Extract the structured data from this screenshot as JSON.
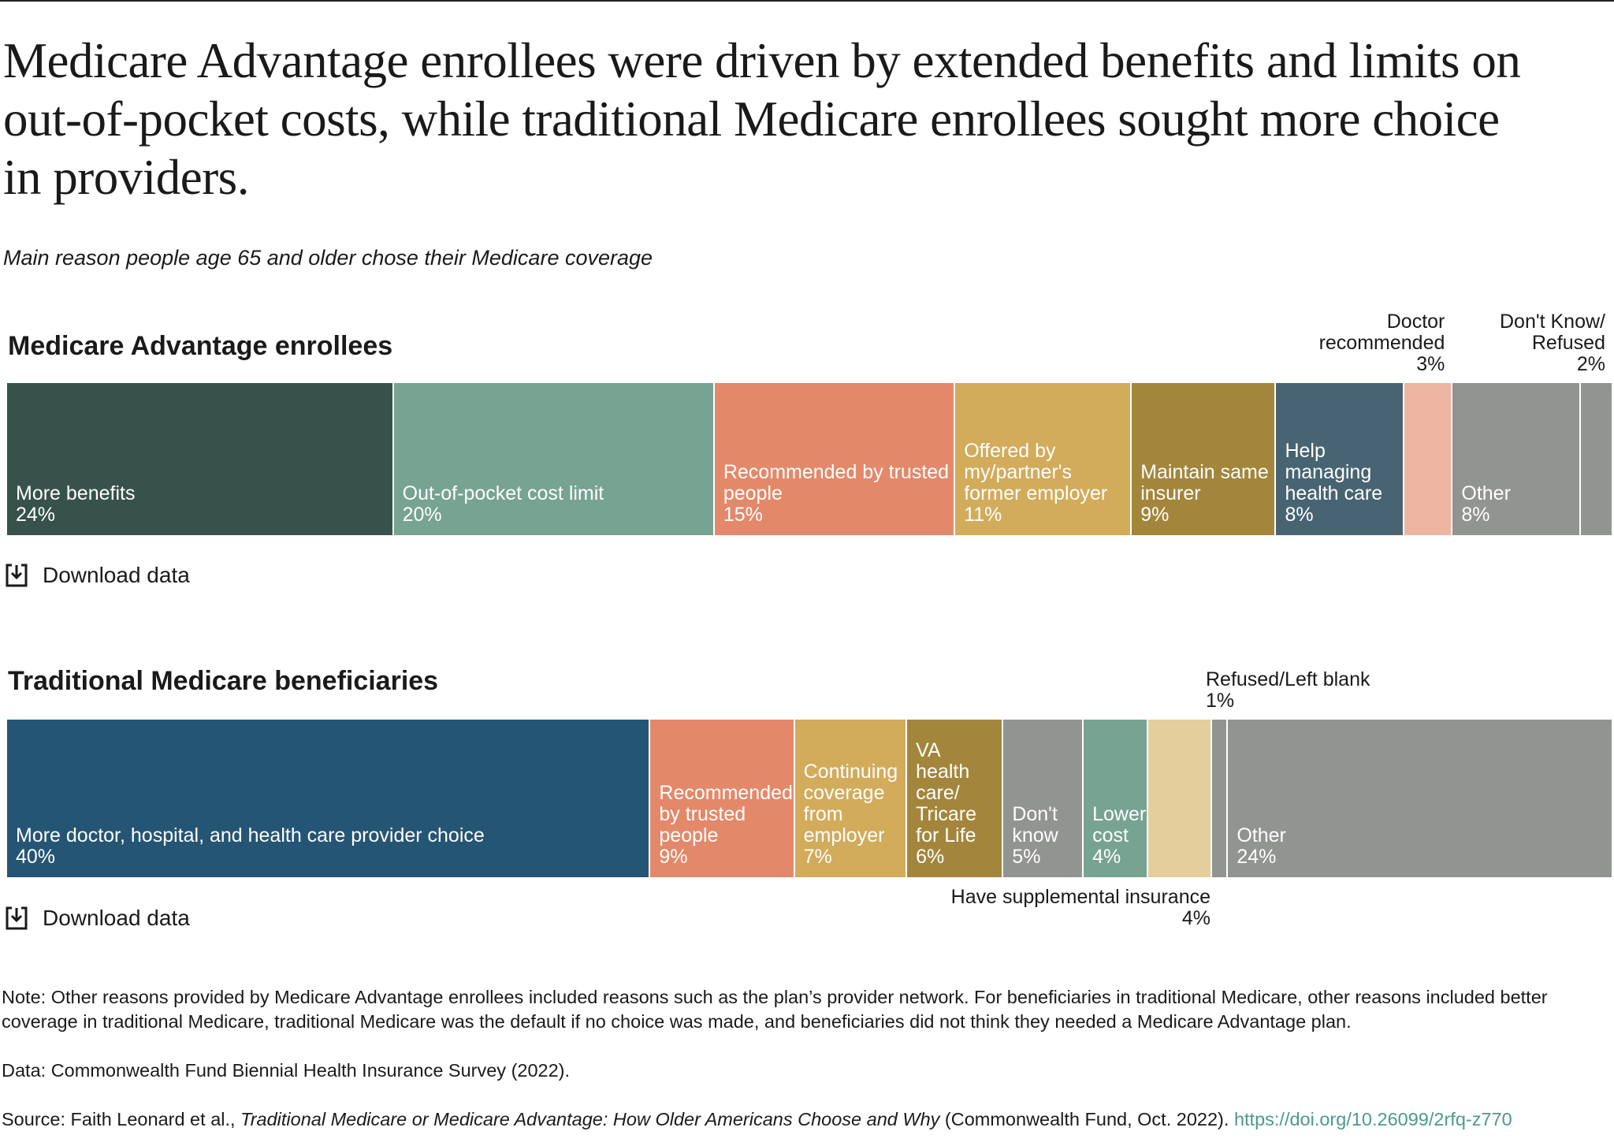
{
  "header": {
    "title": "Medicare Advantage enrollees were driven by extended benefits and limits on out-of-pocket costs, while traditional Medicare enrollees sought more choice in providers.",
    "subtitle": "Main reason people age 65 and older chose their Medicare coverage"
  },
  "chart_data": [
    {
      "type": "stacked-bar",
      "title": "Medicare Advantage enrollees",
      "download": "Download data",
      "series": [
        {
          "name": "More benefits",
          "color": "#37524a",
          "values": [
            24
          ],
          "value_labels": [
            "24%"
          ]
        },
        {
          "name": "Out-of-pocket cost limit",
          "color": "#76a392",
          "values": [
            20
          ],
          "value_labels": [
            "20%"
          ]
        },
        {
          "name": "Recommended by trusted people",
          "color": "#e3896a",
          "values": [
            15
          ],
          "value_labels": [
            "15%"
          ]
        },
        {
          "name": "Offered by my/partner's former employer",
          "color": "#d2ab5b",
          "values": [
            11
          ],
          "value_labels": [
            "11%"
          ]
        },
        {
          "name": "Maintain same insurer",
          "color": "#a3863b",
          "values": [
            9
          ],
          "value_labels": [
            "9%"
          ]
        },
        {
          "name": "Help managing health care",
          "color": "#486473",
          "values": [
            8
          ],
          "value_labels": [
            "8%"
          ]
        },
        {
          "name": "Doctor recommended",
          "color": "#edb5a1",
          "values": [
            3
          ],
          "value_labels": [
            "3%"
          ]
        },
        {
          "name": "Other",
          "color": "#929491",
          "values": [
            8
          ],
          "value_labels": [
            "8%"
          ]
        },
        {
          "name": "Don't Know/ Refused",
          "color": "#929491",
          "values": [
            2
          ],
          "value_labels": [
            "2%"
          ]
        }
      ]
    },
    {
      "type": "stacked-bar",
      "title": "Traditional Medicare beneficiaries",
      "download": "Download data",
      "series": [
        {
          "name": "More doctor, hospital, and health care provider choice",
          "color": "#255574",
          "values": [
            40
          ],
          "value_labels": [
            "40%"
          ]
        },
        {
          "name": "Recommended by trusted people",
          "color": "#e3896a",
          "values": [
            9
          ],
          "value_labels": [
            "9%"
          ]
        },
        {
          "name": "Continuing coverage from employer",
          "color": "#d2ab5b",
          "values": [
            7
          ],
          "value_labels": [
            "7%"
          ]
        },
        {
          "name": "VA health care/ Tricare for Life",
          "color": "#a3863b",
          "values": [
            6
          ],
          "value_labels": [
            "6%"
          ]
        },
        {
          "name": "Don't know",
          "color": "#929491",
          "values": [
            5
          ],
          "value_labels": [
            "5%"
          ]
        },
        {
          "name": "Lower cost",
          "color": "#76a392",
          "values": [
            4
          ],
          "value_labels": [
            "4%"
          ]
        },
        {
          "name": "Have supplemental insurance",
          "color": "#e4cf9c",
          "values": [
            4
          ],
          "value_labels": [
            "4%"
          ]
        },
        {
          "name": "Refused/Left blank",
          "color": "#929491",
          "values": [
            1
          ],
          "value_labels": [
            "1%"
          ]
        },
        {
          "name": "Other",
          "color": "#929491",
          "values": [
            24
          ],
          "value_labels": [
            "24%"
          ]
        }
      ]
    }
  ],
  "footer": {
    "note": "Note: Other reasons provided by Medicare Advantage enrollees included reasons such as the plan’s provider network. For beneficiaries in traditional Medicare, other reasons included better coverage in traditional Medicare, traditional Medicare was the default if no choice was made, and beneficiaries did not think they needed a Medicare Advantage plan.",
    "data": "Data: Commonwealth Fund Biennial Health Insurance Survey (2022).",
    "source_prefix": "Source: Faith Leonard et al., ",
    "source_title": "Traditional Medicare or Medicare Advantage: How Older Americans Choose and Why",
    "source_suffix": " (Commonwealth Fund, Oct. 2022). ",
    "source_url": "https://doi.org/10.26099/2rfq-z770"
  }
}
